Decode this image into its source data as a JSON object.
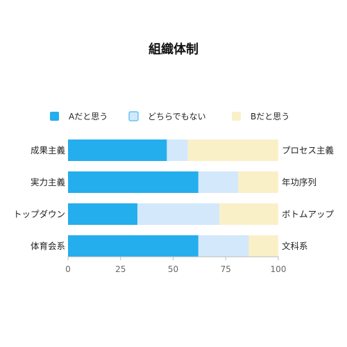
{
  "chart_data": {
    "type": "bar",
    "orientation": "horizontal",
    "stacked": true,
    "title": "組織体制",
    "categories": [
      "成果主義",
      "実力主義",
      "トップダウン",
      "体育会系"
    ],
    "right_labels": [
      "プロセス主義",
      "年功序列",
      "ボトムアップ",
      "文科系"
    ],
    "series": [
      {
        "name": "Aだと思う",
        "values": [
          47,
          62,
          33,
          62
        ],
        "color": "#24aeed"
      },
      {
        "name": "どちらでもない",
        "values": [
          10,
          19,
          39,
          24
        ],
        "color": "#d3e8fa"
      },
      {
        "name": "Bだと思う",
        "values": [
          43,
          19,
          28,
          14
        ],
        "color": "#faf0c7"
      }
    ],
    "xlim": [
      0,
      100
    ],
    "xticks": [
      0,
      25,
      50,
      75,
      100
    ],
    "grid": false,
    "legend_position": "top"
  }
}
